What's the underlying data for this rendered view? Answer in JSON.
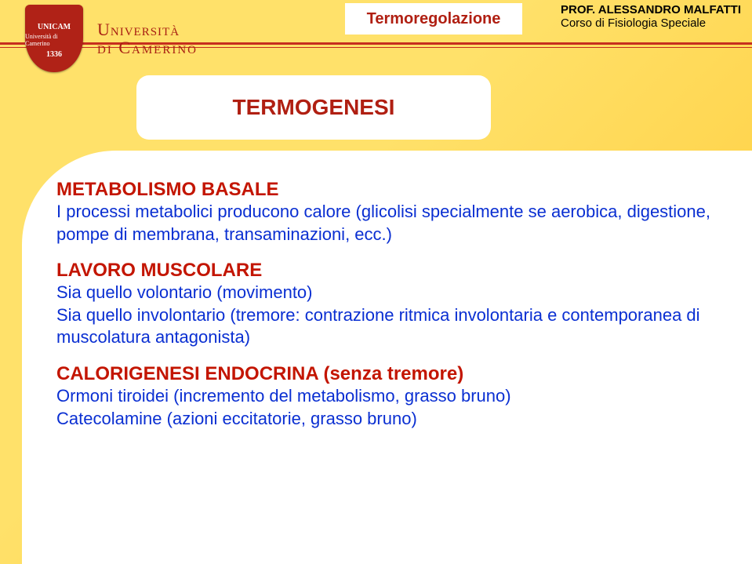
{
  "colors": {
    "background_gradient_start": "#ffe16a",
    "background_gradient_end": "#ffc933",
    "rule_red": "#c62f1e",
    "heading_red": "#c31500",
    "body_blue": "#0a2fd2",
    "white": "#ffffff",
    "shield_red": "#b02217",
    "uni_text_red": "#a82013",
    "black": "#000000"
  },
  "typography": {
    "body_font_family": "Comic Sans MS",
    "uni_font_family": "Georgia",
    "title_fontsize_pt": 22,
    "heading_fontsize_pt": 18,
    "body_fontsize_pt": 16
  },
  "header": {
    "logo": {
      "line1": "UNICAM",
      "line2": "Università di Camerino",
      "year": "1336"
    },
    "university": {
      "line1": "Università",
      "line2": "di Camerino"
    },
    "topic": "Termoregolazione",
    "prof_line1": "PROF. ALESSANDRO MALFATTI",
    "prof_line2": "Corso di Fisiologia Speciale"
  },
  "title": "TERMOGENESI",
  "sections": [
    {
      "heading": "METABOLISMO BASALE",
      "body": "I processi metabolici producono calore (glicolisi specialmente se aerobica, digestione, pompe di membrana, transaminazioni, ecc.)"
    },
    {
      "heading": "LAVORO MUSCOLARE",
      "body": "Sia quello volontario (movimento)",
      "body_l2": "Sia quello involontario (tremore: contrazione ritmica involontaria e contemporanea di muscolatura antagonista)"
    },
    {
      "heading": "CALORIGENESI ENDOCRINA (senza tremore)",
      "body": "Ormoni tiroidei (incremento del metabolismo, grasso bruno)",
      "body_l2": "Catecolamine (azioni eccitatorie, grasso bruno)"
    }
  ]
}
